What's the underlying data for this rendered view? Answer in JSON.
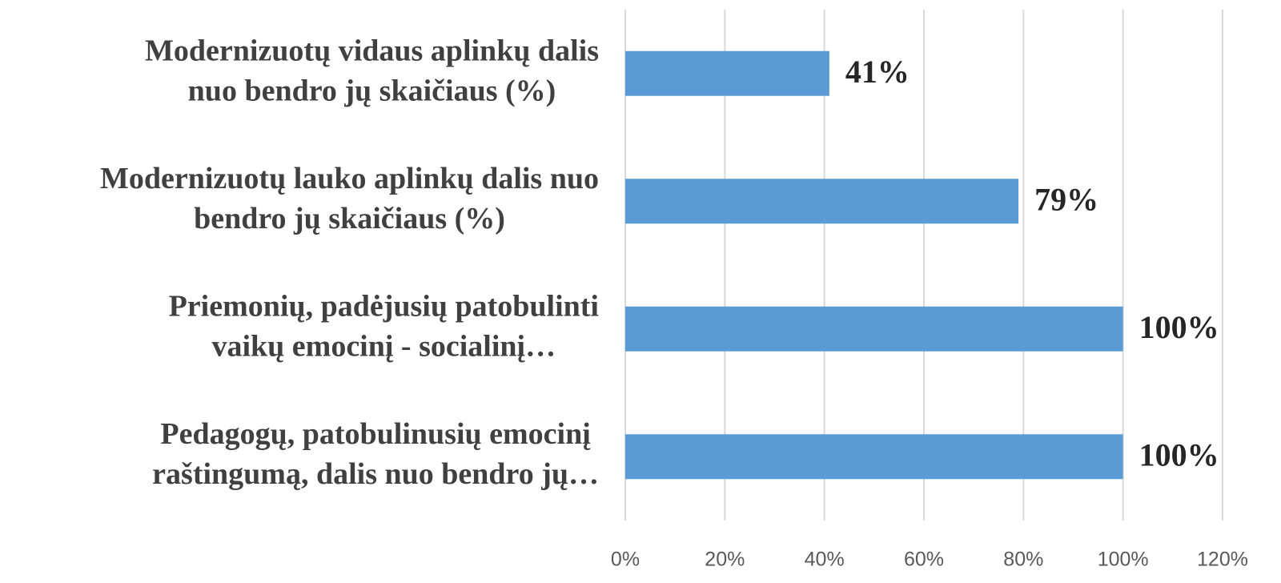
{
  "chart_data": {
    "type": "barh",
    "categories": [
      [
        "Modernizuotų vidaus aplinkų dalis",
        "nuo bendro jų skaičiaus (%)"
      ],
      [
        "Modernizuotų lauko aplinkų dalis nuo",
        "bendro jų skaičiaus (%)"
      ],
      [
        "Priemonių, padėjusių patobulinti",
        "vaikų emocinį - socialinį…"
      ],
      [
        "Pedagogų, patobulinusių emocinį",
        "raštingumą, dalis nuo bendro jų…"
      ]
    ],
    "values": [
      41,
      79,
      100,
      100
    ],
    "value_labels": [
      "41%",
      "79%",
      "100%",
      "100%"
    ],
    "color": "#5b9bd5",
    "xlim": [
      0,
      120
    ],
    "xticks": [
      {
        "value": 0,
        "label": "0%"
      },
      {
        "value": 20,
        "label": "20%"
      },
      {
        "value": 40,
        "label": "40%"
      },
      {
        "value": 60,
        "label": "60%"
      },
      {
        "value": 80,
        "label": "80%"
      },
      {
        "value": 100,
        "label": "100%"
      },
      {
        "value": 120,
        "label": "120%"
      }
    ],
    "grid": true
  }
}
